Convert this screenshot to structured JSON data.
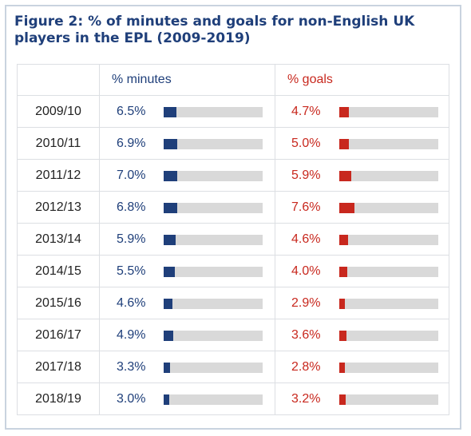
{
  "chart_data": {
    "type": "table",
    "title": "Figure 2: % of minutes and goals for non-English UK players in the EPL (2009-2019)",
    "columns": [
      "",
      "% minutes",
      "% goals"
    ],
    "seasons": [
      "2009/10",
      "2010/11",
      "2011/12",
      "2012/13",
      "2013/14",
      "2014/15",
      "2015/16",
      "2016/17",
      "2017/18",
      "2018/19"
    ],
    "series": [
      {
        "name": "% minutes",
        "labels": [
          "6.5%",
          "6.9%",
          "7.0%",
          "6.8%",
          "5.9%",
          "5.5%",
          "4.6%",
          "4.9%",
          "3.3%",
          "3.0%"
        ],
        "values": [
          6.5,
          6.9,
          7.0,
          6.8,
          5.9,
          5.5,
          4.6,
          4.9,
          3.3,
          3.0
        ],
        "color": "#1f3f7a"
      },
      {
        "name": "% goals",
        "labels": [
          "4.7%",
          "5.0%",
          "5.9%",
          "7.6%",
          "4.6%",
          "4.0%",
          "2.9%",
          "3.6%",
          "2.8%",
          "3.2%"
        ],
        "values": [
          4.7,
          5.0,
          5.9,
          7.6,
          4.6,
          4.0,
          2.9,
          3.6,
          2.8,
          3.2
        ],
        "color": "#c8281e"
      }
    ],
    "bar_max": 50,
    "track_color": "#d9d9d9"
  }
}
